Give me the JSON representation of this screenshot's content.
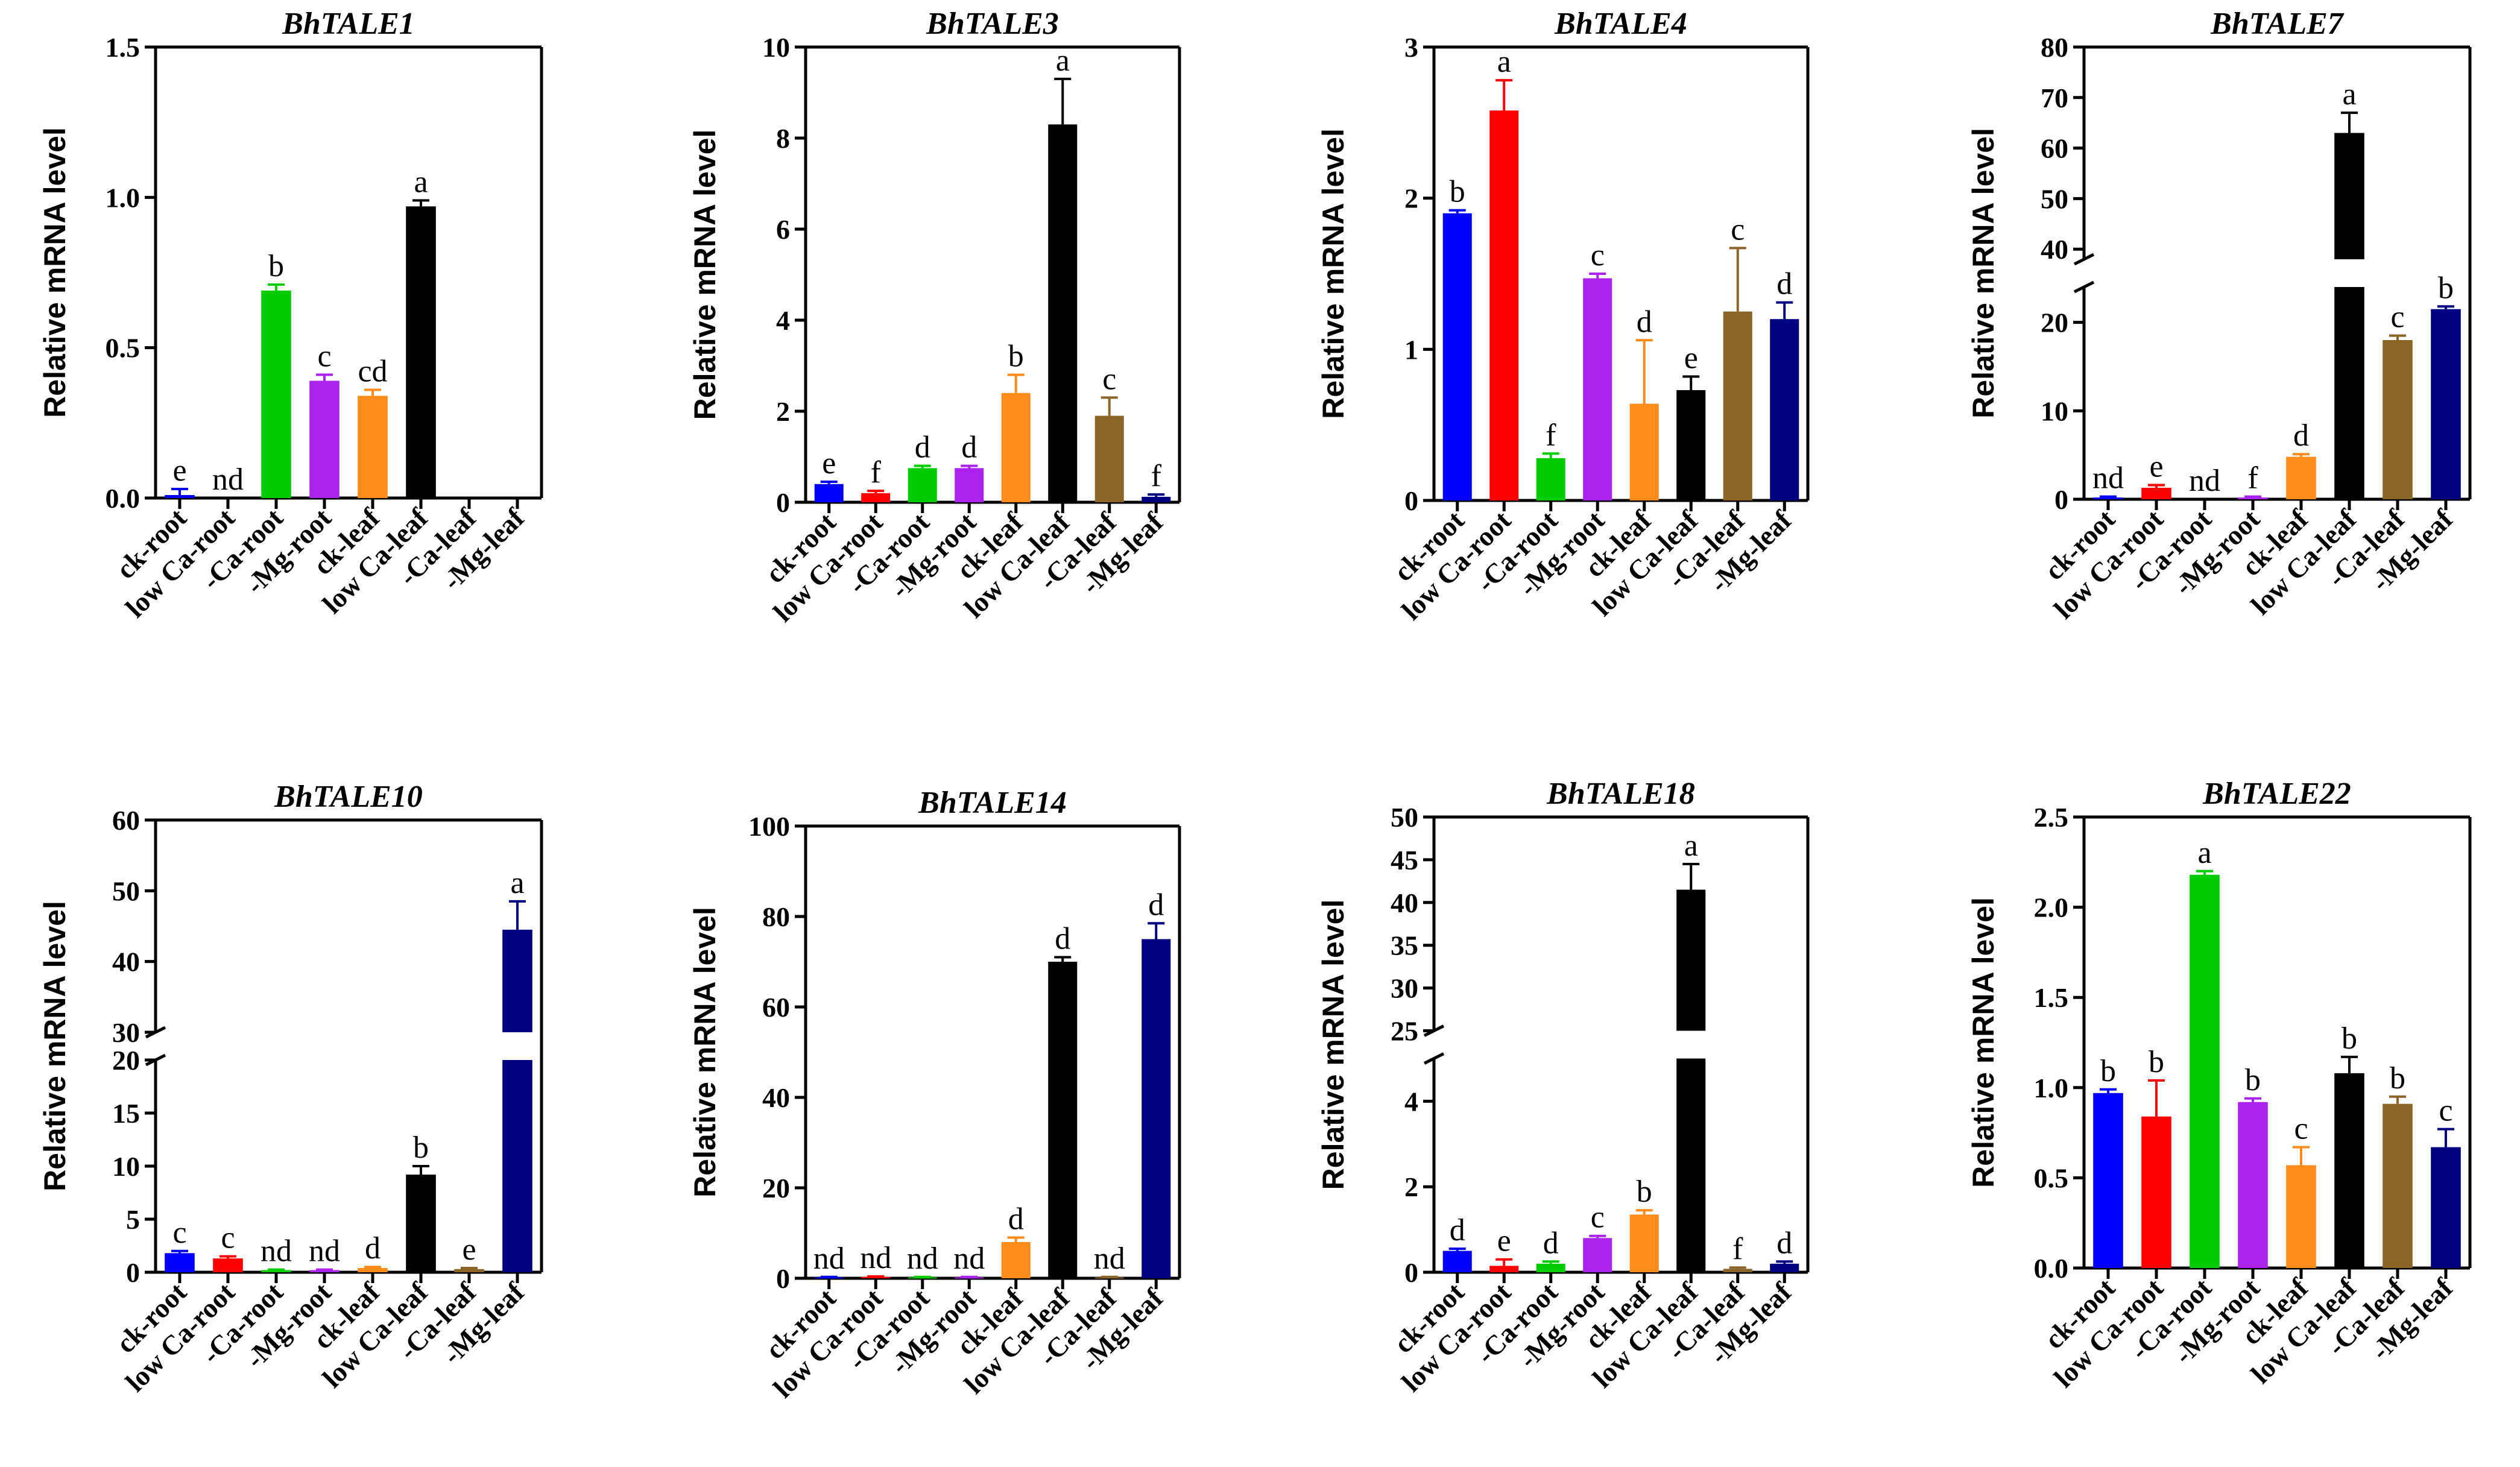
{
  "categories": [
    "ck-root",
    "low Ca-root",
    "-Ca-root",
    "-Mg-root",
    "ck-leaf",
    "low Ca-leaf",
    "-Ca-leaf",
    "-Mg-leaf"
  ],
  "bar_colors": [
    "#0000ff",
    "#ff0000",
    "#00cc00",
    "#aa22ee",
    "#ff8c1a",
    "#000000",
    "#8b6428",
    "#000080"
  ],
  "chart_data": [
    {
      "type": "bar",
      "title": "BhTALE1",
      "ylabel": "Relative mRNA level",
      "ylim": [
        0,
        1.5
      ],
      "yticks": [
        "0.0",
        "0.5",
        "1.0",
        "1.5"
      ],
      "ytick_values": [
        0,
        0.5,
        1.0,
        1.5
      ],
      "values": [
        0.01,
        0,
        0.69,
        0.39,
        0.34,
        0.97,
        0,
        0
      ],
      "errors": [
        0.02,
        0,
        0.02,
        0.02,
        0.02,
        0.02,
        0,
        0
      ],
      "letters": [
        "e",
        "nd",
        "b",
        "c",
        "cd",
        "a",
        "",
        ""
      ]
    },
    {
      "type": "bar",
      "title": "BhTALE3",
      "ylabel": "Relative mRNA level",
      "ylim": [
        0,
        10
      ],
      "yticks": [
        "0",
        "2",
        "4",
        "6",
        "8",
        "10"
      ],
      "ytick_values": [
        0,
        2,
        4,
        6,
        8,
        10
      ],
      "values": [
        0.4,
        0.2,
        0.75,
        0.75,
        2.4,
        8.3,
        1.9,
        0.12
      ],
      "errors": [
        0.05,
        0.05,
        0.05,
        0.05,
        0.4,
        1.0,
        0.4,
        0.05
      ],
      "letters": [
        "e",
        "f",
        "d",
        "d",
        "b",
        "a",
        "c",
        "f"
      ]
    },
    {
      "type": "bar",
      "title": "BhTALE4",
      "ylabel": "Relative mRNA level",
      "ylim": [
        0,
        3
      ],
      "yticks": [
        "0",
        "1",
        "2",
        "3"
      ],
      "ytick_values": [
        0,
        1,
        2,
        3
      ],
      "values": [
        1.9,
        2.58,
        0.28,
        1.47,
        0.64,
        0.73,
        1.25,
        1.2
      ],
      "errors": [
        0.02,
        0.2,
        0.03,
        0.03,
        0.42,
        0.09,
        0.42,
        0.11
      ],
      "letters": [
        "b",
        "a",
        "f",
        "c",
        "d",
        "e",
        "c",
        "d"
      ]
    },
    {
      "type": "bar",
      "title": "BhTALE7",
      "ylabel": "Relative mRNA level",
      "axis_break": [
        24,
        38
      ],
      "ylim": [
        0,
        80
      ],
      "yticks": [
        "0",
        "10",
        "20",
        "40",
        "50",
        "60",
        "70",
        "80"
      ],
      "ytick_values": [
        0,
        10,
        20,
        40,
        50,
        60,
        70,
        80
      ],
      "values": [
        0.2,
        1.3,
        0,
        0.2,
        4.8,
        63,
        18,
        21.5
      ],
      "errors": [
        0.1,
        0.3,
        0,
        0.1,
        0.3,
        4,
        0.5,
        0.3
      ],
      "letters": [
        "nd",
        "e",
        "nd",
        "f",
        "d",
        "a",
        "c",
        "b"
      ]
    },
    {
      "type": "bar",
      "title": "BhTALE10",
      "ylabel": "Relative mRNA level",
      "axis_break": [
        20,
        30
      ],
      "ylim": [
        0,
        60
      ],
      "yticks": [
        "0",
        "5",
        "10",
        "15",
        "20",
        "30",
        "40",
        "50",
        "60"
      ],
      "ytick_values": [
        0,
        5,
        10,
        15,
        20,
        30,
        40,
        50,
        60
      ],
      "values": [
        1.8,
        1.3,
        0.2,
        0.2,
        0.4,
        9.2,
        0.3,
        44.5
      ],
      "errors": [
        0.2,
        0.2,
        0.05,
        0.05,
        0.1,
        0.8,
        0.1,
        4
      ],
      "letters": [
        "c",
        "c",
        "nd",
        "nd",
        "d",
        "b",
        "e",
        "a"
      ]
    },
    {
      "type": "bar",
      "title": "BhTALE14",
      "ylabel": "Relative mRNA level",
      "ylim": [
        0,
        100
      ],
      "yticks": [
        "0",
        "20",
        "40",
        "60",
        "80",
        "100"
      ],
      "ytick_values": [
        0,
        20,
        40,
        60,
        80,
        100
      ],
      "values": [
        0.2,
        0.3,
        0.2,
        0.2,
        8,
        70,
        0.2,
        75
      ],
      "errors": [
        0.1,
        0.1,
        0.1,
        0.1,
        1,
        1,
        0.1,
        3.5
      ],
      "letters": [
        "nd",
        "nd",
        "nd",
        "nd",
        "d",
        "d",
        "nd",
        "d"
      ]
    },
    {
      "type": "bar",
      "title": "BhTALE18",
      "ylabel": "Relative mRNA level",
      "axis_break": [
        5,
        25
      ],
      "ylim": [
        0,
        50
      ],
      "yticks": [
        "0",
        "2",
        "4",
        "25",
        "30",
        "35",
        "40",
        "45",
        "50"
      ],
      "ytick_values": [
        0,
        2,
        4,
        25,
        30,
        35,
        40,
        45,
        50
      ],
      "values": [
        0.5,
        0.15,
        0.2,
        0.8,
        1.35,
        41.5,
        0.08,
        0.2
      ],
      "errors": [
        0.05,
        0.15,
        0.05,
        0.05,
        0.1,
        3,
        0.03,
        0.05
      ],
      "letters": [
        "d",
        "e",
        "d",
        "c",
        "b",
        "a",
        "f",
        "d"
      ]
    },
    {
      "type": "bar",
      "title": "BhTALE22",
      "ylabel": "Relative mRNA level",
      "ylim": [
        0,
        2.5
      ],
      "yticks": [
        "0.0",
        "0.5",
        "1.0",
        "1.5",
        "2.0",
        "2.5"
      ],
      "ytick_values": [
        0,
        0.5,
        1.0,
        1.5,
        2.0,
        2.5
      ],
      "values": [
        0.97,
        0.84,
        2.18,
        0.92,
        0.57,
        1.08,
        0.91,
        0.67
      ],
      "errors": [
        0.02,
        0.2,
        0.02,
        0.02,
        0.1,
        0.09,
        0.04,
        0.1
      ],
      "letters": [
        "b",
        "b",
        "a",
        "b",
        "c",
        "b",
        "b",
        "c"
      ]
    }
  ]
}
